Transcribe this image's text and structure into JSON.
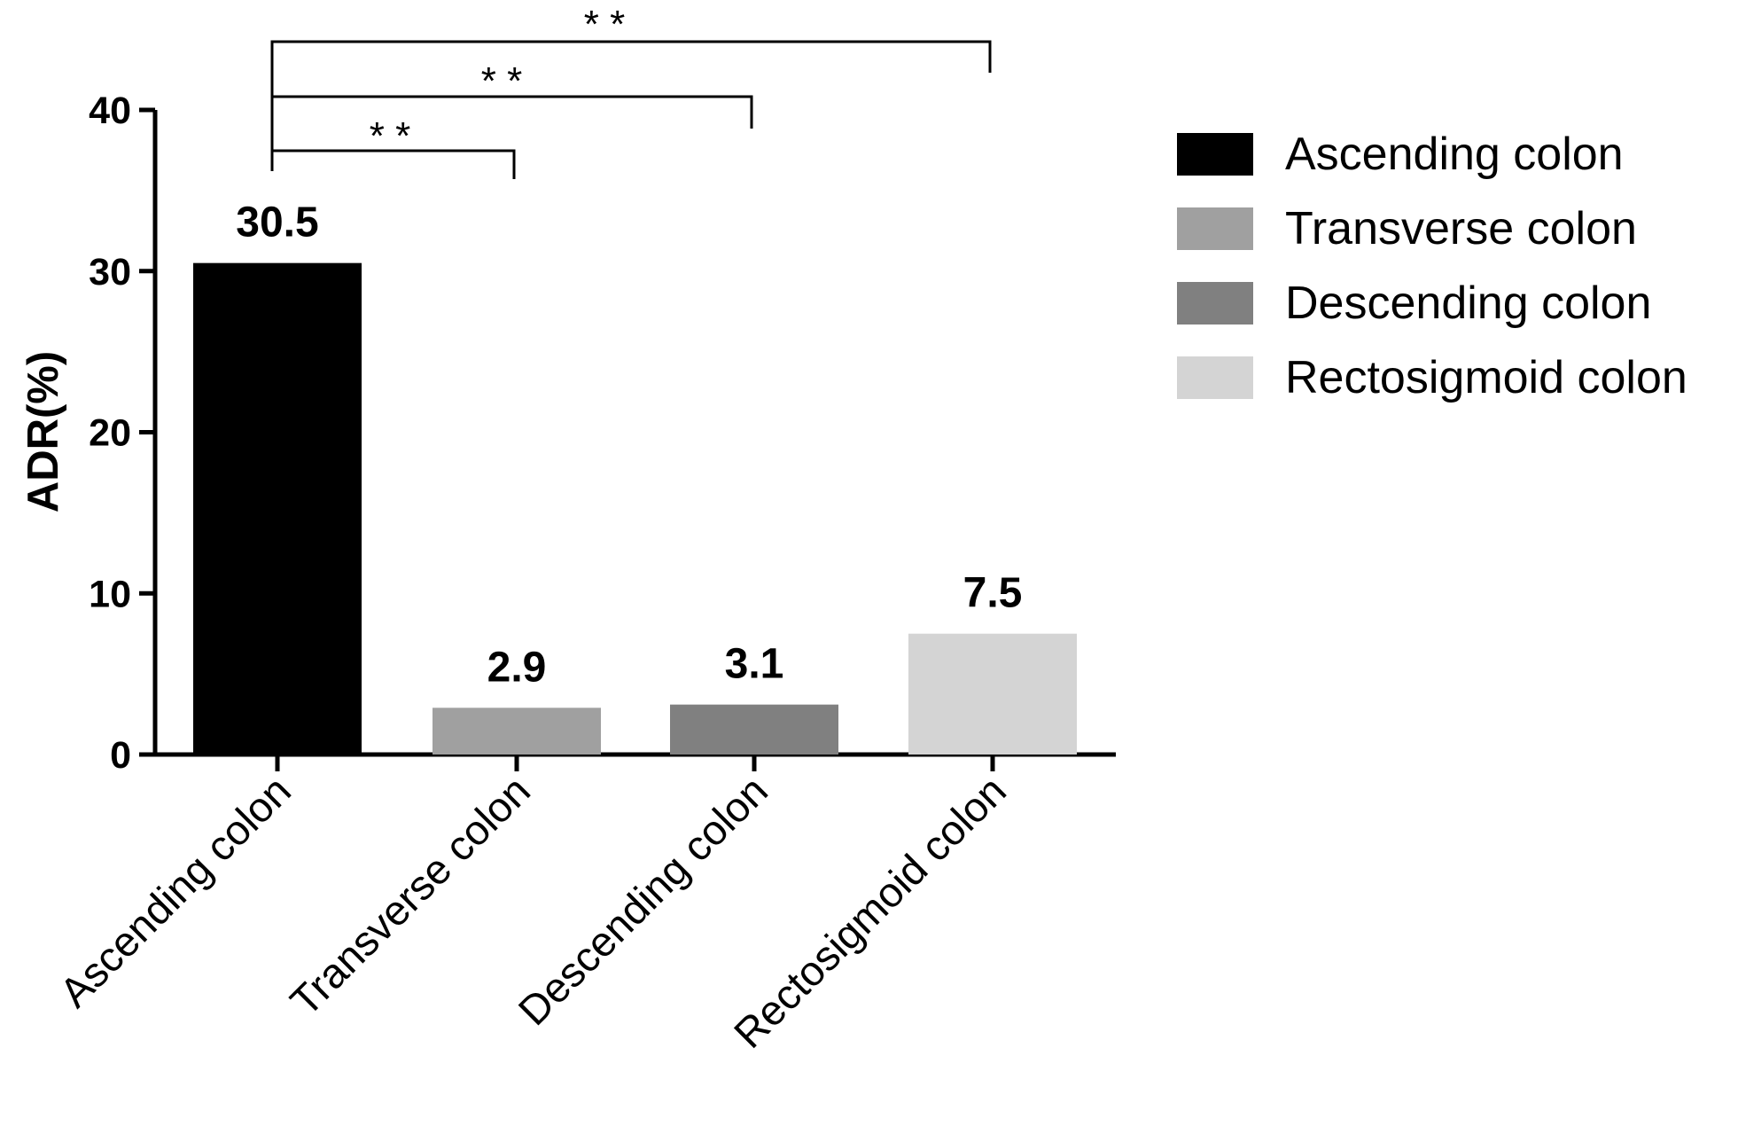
{
  "chart_data": {
    "type": "bar",
    "ylabel": "ADR(%)",
    "ylim": [
      0,
      40
    ],
    "yticks": [
      "0",
      "10",
      "20",
      "30",
      "40"
    ],
    "categories": [
      "Ascending colon",
      "Transverse colon",
      "Descending  colon",
      "Rectosigmoid colon"
    ],
    "values": [
      30.5,
      2.9,
      3.1,
      7.5
    ],
    "value_labels": [
      "30.5",
      "2.9",
      "3.1",
      "7.5"
    ],
    "colors": [
      "#000000",
      "#a0a0a0",
      "#808080",
      "#d4d4d4"
    ],
    "legend": {
      "placement": "right",
      "entries": [
        "Ascending colon",
        "Transverse colon",
        "Descending  colon",
        "Rectosigmoid colon"
      ]
    },
    "significance": [
      {
        "from": "Ascending colon",
        "to": "Transverse colon",
        "label": "* *"
      },
      {
        "from": "Ascending colon",
        "to": "Descending  colon",
        "label": "* *"
      },
      {
        "from": "Ascending colon",
        "to": "Rectosigmoid colon",
        "label": "* *"
      }
    ],
    "grid": false
  }
}
